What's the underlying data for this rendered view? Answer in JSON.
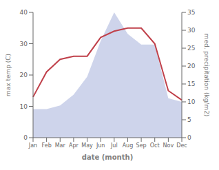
{
  "chart_data": {
    "type": "line",
    "xlabel": "date (month)",
    "ylabel": "max temp (C)",
    "y2label": "med. precipitation (kg/m2)",
    "categories": [
      "Jan",
      "Feb",
      "Mar",
      "Apr",
      "May",
      "Jun",
      "Jul",
      "Aug",
      "Sep",
      "Oct",
      "Nov",
      "Dec"
    ],
    "series": [
      {
        "type": "area",
        "axis": "y2",
        "color": "#c5cce8",
        "values": [
          8,
          8,
          9,
          12,
          17,
          27,
          35,
          29,
          26,
          26,
          11,
          10
        ]
      },
      {
        "type": "line",
        "color": "#c0404a",
        "values": [
          13,
          21,
          25,
          26,
          26,
          32,
          34,
          35,
          35,
          30,
          15,
          12
        ]
      }
    ],
    "ylim": [
      0,
      40
    ],
    "yticks": [
      0,
      10,
      20,
      30,
      40
    ],
    "y2lim": [
      0,
      35
    ],
    "y2ticks": [
      0,
      5,
      10,
      15,
      20,
      25,
      30,
      35
    ],
    "grid": false
  }
}
